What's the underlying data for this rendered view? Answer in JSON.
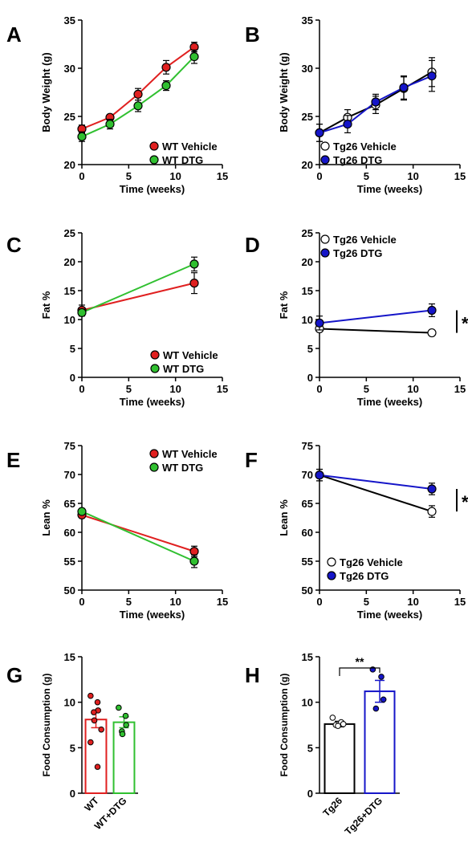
{
  "colors": {
    "wt_vehicle": "#e02020",
    "wt_dtg": "#30c030",
    "tg26_vehicle_fill": "#ffffff",
    "tg26_dtg": "#1515c8",
    "tg26_vehicle_line": "#000000"
  },
  "chart_data": [
    {
      "panel": "A",
      "type": "line",
      "xlabel": "Time (weeks)",
      "ylabel": "Body Weight (g)",
      "xlim": [
        0,
        15
      ],
      "ylim": [
        20,
        35
      ],
      "xticks": [
        "0",
        "5",
        "10",
        "15"
      ],
      "yticks": [
        "20",
        "25",
        "30",
        "35"
      ],
      "legend": "bottom-right",
      "series": [
        {
          "name": "WT Vehicle",
          "color": "#e02020",
          "marker_fill": "#e02020",
          "x": [
            0,
            3,
            6,
            9,
            12
          ],
          "y": [
            23.7,
            24.9,
            27.3,
            30.1,
            32.2
          ],
          "err": [
            0.4,
            0.3,
            0.6,
            0.7,
            0.5
          ]
        },
        {
          "name": "WT DTG",
          "color": "#30c030",
          "marker_fill": "#30c030",
          "x": [
            0,
            3,
            6,
            9,
            12
          ],
          "y": [
            22.9,
            24.2,
            26.1,
            28.2,
            31.2
          ],
          "err": [
            0.5,
            0.5,
            0.6,
            0.5,
            0.7
          ]
        }
      ]
    },
    {
      "panel": "B",
      "type": "line",
      "xlabel": "Time (weeks)",
      "ylabel": "Body Weight (g)",
      "xlim": [
        0,
        15
      ],
      "ylim": [
        20,
        35
      ],
      "xticks": [
        "0",
        "5",
        "10",
        "15"
      ],
      "yticks": [
        "20",
        "25",
        "30",
        "35"
      ],
      "legend": "bottom-right",
      "series": [
        {
          "name": "Tg26 Vehicle",
          "color": "#000000",
          "marker_fill": "#ffffff",
          "x": [
            0,
            3,
            6,
            9,
            12
          ],
          "y": [
            23.3,
            24.9,
            26.2,
            27.9,
            29.6
          ],
          "err": [
            0.9,
            0.8,
            0.9,
            1.2,
            1.5
          ]
        },
        {
          "name": "Tg26 DTG",
          "color": "#1515c8",
          "marker_fill": "#1515c8",
          "x": [
            0,
            3,
            6,
            9,
            12
          ],
          "y": [
            23.3,
            24.2,
            26.5,
            28.0,
            29.2
          ],
          "err": [
            0.9,
            0.9,
            0.8,
            1.2,
            1.6
          ]
        }
      ]
    },
    {
      "panel": "C",
      "type": "line",
      "xlabel": "Time (weeks)",
      "ylabel": "Fat %",
      "xlim": [
        0,
        15
      ],
      "ylim": [
        0,
        25
      ],
      "xticks": [
        "0",
        "5",
        "10",
        "15"
      ],
      "yticks": [
        "0",
        "5",
        "10",
        "15",
        "20",
        "25"
      ],
      "legend": "bottom-right",
      "series": [
        {
          "name": "WT Vehicle",
          "color": "#e02020",
          "marker_fill": "#e02020",
          "x": [
            0,
            12
          ],
          "y": [
            11.6,
            16.3
          ],
          "err": [
            0.9,
            1.8
          ]
        },
        {
          "name": "WT DTG",
          "color": "#30c030",
          "marker_fill": "#30c030",
          "x": [
            0,
            12
          ],
          "y": [
            11.2,
            19.6
          ],
          "err": [
            0.6,
            1.2
          ]
        }
      ]
    },
    {
      "panel": "D",
      "type": "line",
      "xlabel": "Time (weeks)",
      "ylabel": "Fat %",
      "xlim": [
        0,
        15
      ],
      "ylim": [
        0,
        25
      ],
      "xticks": [
        "0",
        "5",
        "10",
        "15"
      ],
      "yticks": [
        "0",
        "5",
        "10",
        "15",
        "20",
        "25"
      ],
      "legend": "top-right",
      "significance": "*",
      "series": [
        {
          "name": "Tg26 Vehicle",
          "color": "#000000",
          "marker_fill": "#ffffff",
          "x": [
            0,
            12
          ],
          "y": [
            8.4,
            7.7
          ],
          "err": [
            0.4,
            0.4
          ]
        },
        {
          "name": "Tg26 DTG",
          "color": "#1515c8",
          "marker_fill": "#1515c8",
          "x": [
            0,
            12
          ],
          "y": [
            9.4,
            11.6
          ],
          "err": [
            1.2,
            1.1
          ]
        }
      ]
    },
    {
      "panel": "E",
      "type": "line",
      "xlabel": "Time (weeks)",
      "ylabel": "Lean %",
      "xlim": [
        0,
        15
      ],
      "ylim": [
        50,
        75
      ],
      "xticks": [
        "0",
        "5",
        "10",
        "15"
      ],
      "yticks": [
        "50",
        "55",
        "60",
        "65",
        "70",
        "75"
      ],
      "legend": "top-right",
      "series": [
        {
          "name": "WT Vehicle",
          "color": "#e02020",
          "marker_fill": "#e02020",
          "x": [
            0,
            12
          ],
          "y": [
            63.0,
            56.7
          ],
          "err": [
            0.5,
            0.9
          ]
        },
        {
          "name": "WT DTG",
          "color": "#30c030",
          "marker_fill": "#30c030",
          "x": [
            0,
            12
          ],
          "y": [
            63.6,
            55.0
          ],
          "err": [
            0.4,
            1.1
          ]
        }
      ]
    },
    {
      "panel": "F",
      "type": "line",
      "xlabel": "Time (weeks)",
      "ylabel": "Lean %",
      "xlim": [
        0,
        15
      ],
      "ylim": [
        50,
        75
      ],
      "xticks": [
        "0",
        "5",
        "10",
        "15"
      ],
      "yticks": [
        "50",
        "55",
        "60",
        "65",
        "70",
        "75"
      ],
      "legend": "bottom-right",
      "significance": "*",
      "series": [
        {
          "name": "Tg26 Vehicle",
          "color": "#000000",
          "marker_fill": "#ffffff",
          "x": [
            0,
            12
          ],
          "y": [
            69.9,
            63.6
          ],
          "err": [
            1.0,
            1.0
          ]
        },
        {
          "name": "Tg26 DTG",
          "color": "#1515c8",
          "marker_fill": "#1515c8",
          "x": [
            0,
            12
          ],
          "y": [
            69.9,
            67.5
          ],
          "err": [
            1.0,
            1.0
          ]
        }
      ]
    },
    {
      "panel": "G",
      "type": "bar",
      "ylabel": "Food Consumption (g)",
      "ylim": [
        0,
        15
      ],
      "yticks": [
        "0",
        "5",
        "10",
        "15"
      ],
      "categories": [
        "WT",
        "WT+DTG"
      ],
      "values": [
        8.1,
        7.8
      ],
      "err": [
        0.9,
        0.6
      ],
      "colors": [
        "#e02020",
        "#30c030"
      ],
      "points": [
        [
          10.7,
          10.0,
          9.1,
          8.9,
          8.0,
          7.0,
          5.6,
          2.9
        ],
        [
          9.4,
          8.5,
          7.5,
          6.8,
          6.5
        ]
      ]
    },
    {
      "panel": "H",
      "type": "bar",
      "ylabel": "Food Consumption (g)",
      "ylim": [
        0,
        15
      ],
      "yticks": [
        "0",
        "5",
        "10",
        "15"
      ],
      "categories": [
        "Tg26",
        "Tg26+DTG"
      ],
      "values": [
        7.6,
        11.2
      ],
      "err": [
        0.3,
        1.2
      ],
      "colors": [
        "#000000",
        "#1515c8"
      ],
      "points": [
        [
          8.3,
          7.8,
          7.6,
          7.5,
          7.4
        ],
        [
          13.6,
          12.8,
          10.3,
          9.3
        ]
      ],
      "significance": "**"
    }
  ]
}
